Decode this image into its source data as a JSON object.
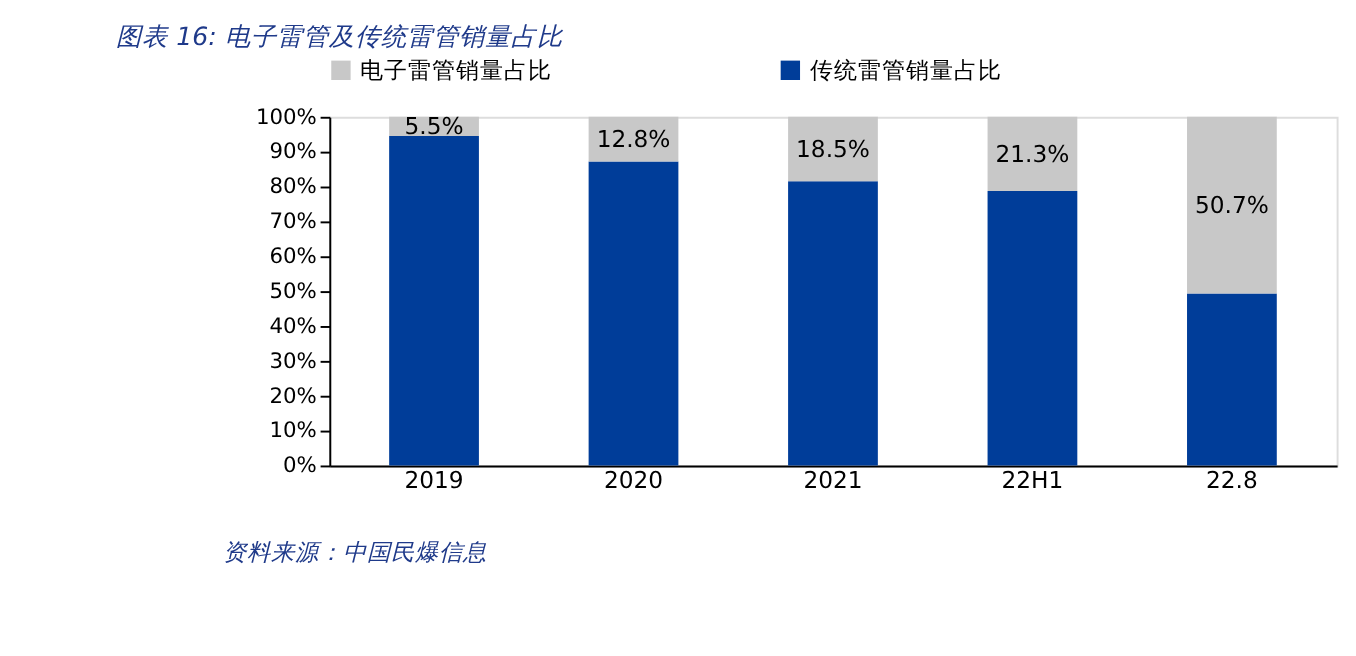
{
  "chart_data": {
    "type": "bar",
    "stacked": true,
    "title": "图表 16:  电子雷管及传统雷管销量占比",
    "categories": [
      "2019",
      "2020",
      "2021",
      "22H1",
      "22.8"
    ],
    "series": [
      {
        "name": "传统雷管销量占比",
        "color": "#003d99",
        "values": [
          94.5,
          87.2,
          81.5,
          78.7,
          49.3
        ]
      },
      {
        "name": "电子雷管销量占比",
        "color": "#c8c8c8",
        "values": [
          5.5,
          12.8,
          18.5,
          21.3,
          50.7
        ],
        "value_labels": [
          "5.5%",
          "12.8%",
          "18.5%",
          "21.3%",
          "50.7%"
        ]
      }
    ],
    "ylim": [
      0,
      100
    ],
    "yticks": [
      {
        "value": 0,
        "label": "0%"
      },
      {
        "value": 10,
        "label": "10%"
      },
      {
        "value": 20,
        "label": "20%"
      },
      {
        "value": 30,
        "label": "30%"
      },
      {
        "value": 40,
        "label": "40%"
      },
      {
        "value": 50,
        "label": "50%"
      },
      {
        "value": 60,
        "label": "60%"
      },
      {
        "value": 70,
        "label": "70%"
      },
      {
        "value": 80,
        "label": "80%"
      },
      {
        "value": 90,
        "label": "90%"
      },
      {
        "value": 100,
        "label": "100%"
      }
    ],
    "grid": false,
    "legend": "top",
    "annotations": [
      "资料来源：中国民爆信息"
    ]
  }
}
